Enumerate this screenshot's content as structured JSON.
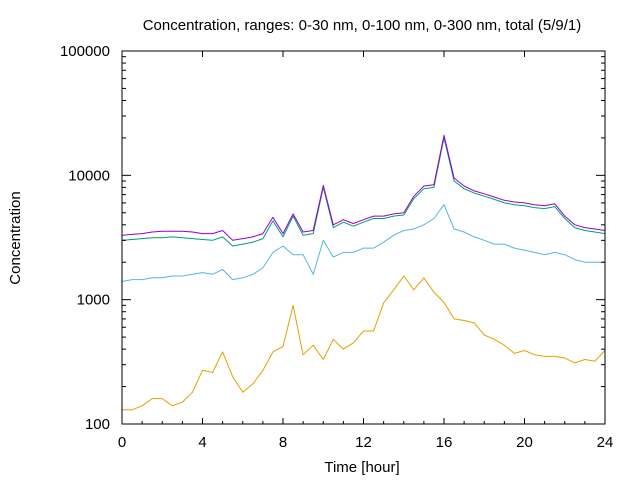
{
  "chart_data": {
    "type": "line",
    "title": "Concentration, ranges: 0-30 nm, 0-100 nm, 0-300 nm, total (5/9/1)",
    "xlabel": "Time [hour]",
    "ylabel": "Concentration",
    "xlim": [
      0,
      24
    ],
    "ylim": [
      100,
      100000
    ],
    "yscale": "log",
    "grid": false,
    "legend": "none",
    "x_ticks": [
      0,
      4,
      8,
      12,
      16,
      20,
      24
    ],
    "x_tick_labels": [
      "0",
      "4",
      "8",
      "12",
      "16",
      "20",
      "24"
    ],
    "y_ticks": [
      100,
      1000,
      10000,
      100000
    ],
    "y_tick_labels": [
      "100",
      "1000",
      "10000",
      "100000"
    ],
    "series": [
      {
        "color": "#e6a000",
        "x": [
          0,
          0.5,
          1,
          1.5,
          2,
          2.5,
          3,
          3.5,
          4,
          4.5,
          5,
          5.5,
          6,
          6.5,
          7,
          7.5,
          8,
          8.5,
          9,
          9.5,
          10,
          10.5,
          11,
          11.5,
          12,
          12.5,
          13,
          13.5,
          14,
          14.5,
          15,
          15.5,
          16,
          16.5,
          17,
          17.5,
          18,
          18.5,
          19,
          19.5,
          20,
          20.5,
          21,
          21.5,
          22,
          22.5,
          23,
          23.5,
          24
        ],
        "y": [
          130,
          130,
          140,
          160,
          160,
          140,
          150,
          180,
          270,
          260,
          380,
          240,
          180,
          210,
          270,
          380,
          420,
          900,
          360,
          430,
          330,
          480,
          400,
          450,
          560,
          560,
          940,
          1200,
          1550,
          1200,
          1500,
          1150,
          950,
          700,
          680,
          650,
          520,
          480,
          430,
          370,
          390,
          360,
          350,
          350,
          340,
          310,
          330,
          320,
          390
        ]
      },
      {
        "color": "#56b4e9",
        "x": [
          0,
          0.5,
          1,
          1.5,
          2,
          2.5,
          3,
          3.5,
          4,
          4.5,
          5,
          5.5,
          6,
          6.5,
          7,
          7.5,
          8,
          8.5,
          9,
          9.5,
          10,
          10.5,
          11,
          11.5,
          12,
          12.5,
          13,
          13.5,
          14,
          14.5,
          15,
          15.5,
          16,
          16.5,
          17,
          17.5,
          18,
          18.5,
          19,
          19.5,
          20,
          20.5,
          21,
          21.5,
          22,
          22.5,
          23,
          23.5,
          24
        ],
        "y": [
          1400,
          1450,
          1450,
          1500,
          1500,
          1550,
          1550,
          1600,
          1650,
          1600,
          1750,
          1450,
          1500,
          1600,
          1800,
          2400,
          2700,
          2300,
          2300,
          1600,
          3000,
          2200,
          2400,
          2400,
          2600,
          2600,
          2900,
          3300,
          3600,
          3700,
          4000,
          4500,
          5800,
          3700,
          3500,
          3200,
          3000,
          2800,
          2800,
          2600,
          2500,
          2400,
          2300,
          2400,
          2300,
          2100,
          2000,
          2000,
          2000
        ]
      },
      {
        "color": "#009e73",
        "x": [
          0,
          0.5,
          1,
          1.5,
          2,
          2.5,
          3,
          3.5,
          4,
          4.5,
          5,
          5.5,
          6,
          6.5,
          7,
          7.5,
          8,
          8.5,
          9,
          9.5,
          10,
          10.5,
          11,
          11.5,
          12,
          12.5,
          13,
          13.5,
          14,
          14.5,
          15,
          15.5,
          16,
          16.5,
          17,
          17.5,
          18,
          18.5,
          19,
          19.5,
          20,
          20.5,
          21,
          21.5,
          22,
          22.5,
          23,
          23.5,
          24
        ],
        "y": [
          3000,
          3050,
          3100,
          3150,
          3150,
          3200,
          3150,
          3100,
          3050,
          3000,
          3200,
          2700,
          2800,
          2900,
          3100,
          4300,
          3200,
          4700,
          3300,
          3400,
          8000,
          3800,
          4200,
          3900,
          4200,
          4500,
          4500,
          4700,
          4800,
          6500,
          7800,
          8000,
          20000,
          9000,
          7800,
          7200,
          6800,
          6400,
          6000,
          5800,
          5700,
          5500,
          5400,
          5600,
          4500,
          3800,
          3600,
          3500,
          3400
        ]
      },
      {
        "color": "#9400d3",
        "x": [
          0,
          0.5,
          1,
          1.5,
          2,
          2.5,
          3,
          3.5,
          4,
          4.5,
          5,
          5.5,
          6,
          6.5,
          7,
          7.5,
          8,
          8.5,
          9,
          9.5,
          10,
          10.5,
          11,
          11.5,
          12,
          12.5,
          13,
          13.5,
          14,
          14.5,
          15,
          15.5,
          16,
          16.5,
          17,
          17.5,
          18,
          18.5,
          19,
          19.5,
          20,
          20.5,
          21,
          21.5,
          22,
          22.5,
          23,
          23.5,
          24
        ],
        "y": [
          3300,
          3350,
          3400,
          3500,
          3550,
          3550,
          3550,
          3500,
          3400,
          3400,
          3600,
          3000,
          3100,
          3200,
          3400,
          4600,
          3400,
          4900,
          3500,
          3600,
          8300,
          4000,
          4400,
          4100,
          4400,
          4700,
          4700,
          4900,
          5000,
          6800,
          8200,
          8400,
          21000,
          9500,
          8200,
          7500,
          7100,
          6700,
          6300,
          6100,
          6000,
          5800,
          5700,
          5900,
          4700,
          4000,
          3800,
          3700,
          3600
        ]
      }
    ]
  }
}
